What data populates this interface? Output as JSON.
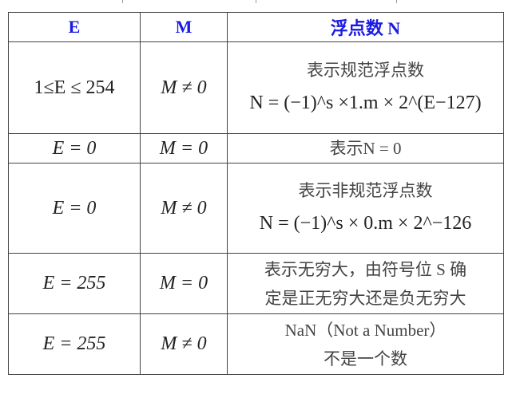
{
  "header": {
    "e": "E",
    "m": "M",
    "n": "浮点数 N"
  },
  "rows": [
    {
      "e": "1≤E ≤ 254",
      "m": "M ≠ 0",
      "n1": "表示规范浮点数",
      "n2": "N = (−1)^s ×1.m × 2^(E−127)"
    },
    {
      "e": "E = 0",
      "m": "M = 0",
      "n1": "表示N = 0"
    },
    {
      "e": "E = 0",
      "m": "M ≠ 0",
      "n1": "表示非规范浮点数",
      "n2": "N = (−1)^s × 0.m × 2^−126"
    },
    {
      "e": "E = 255",
      "m": "M = 0",
      "n1": "表示无穷大，由符号位 S 确",
      "n2": "定是正无穷大还是负无穷大"
    },
    {
      "e": "E = 255",
      "m": "M ≠ 0",
      "n1": "NaN（Not a Number）",
      "n2": "不是一个数"
    }
  ],
  "colors": {
    "header": "#1a1ae6",
    "border": "#444444"
  }
}
